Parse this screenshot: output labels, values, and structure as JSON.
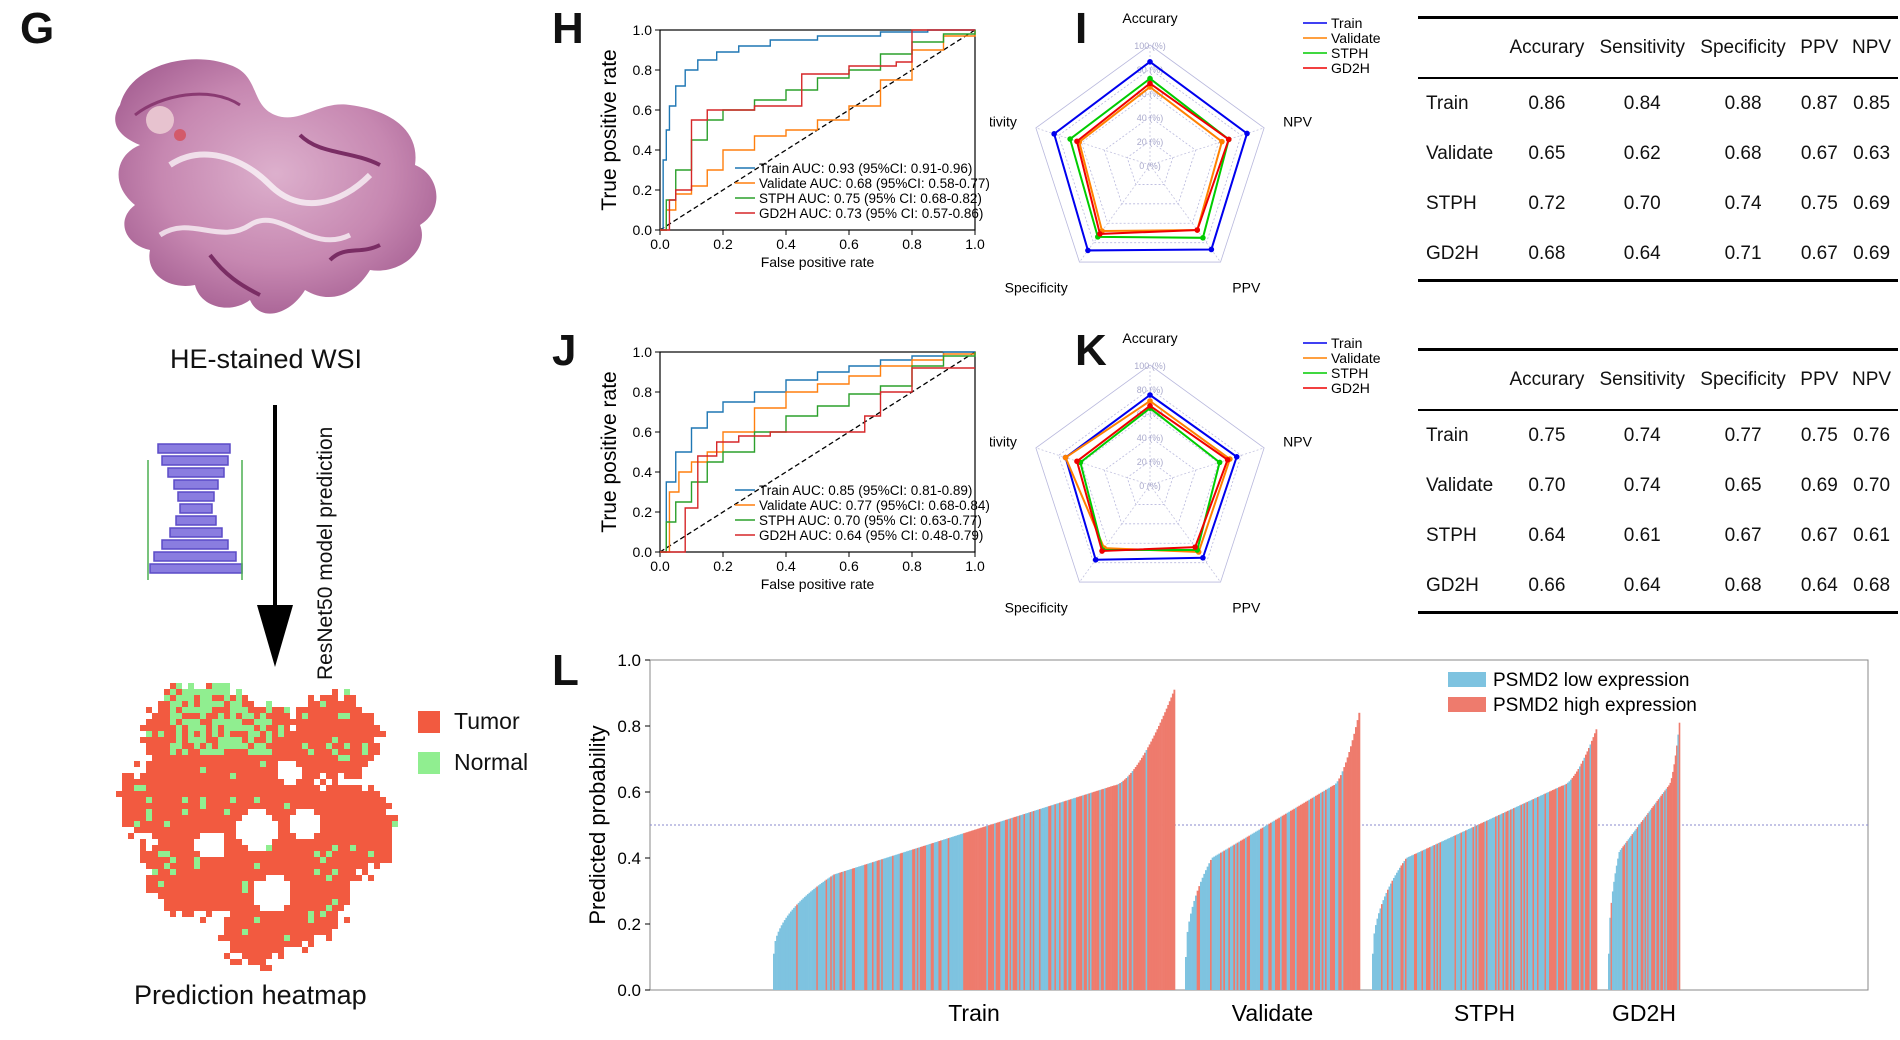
{
  "panels": {
    "G": "G",
    "H": "H",
    "I": "I",
    "J": "J",
    "K": "K",
    "L": "L"
  },
  "workflow": {
    "wsi_caption": "HE-stained WSI",
    "arrow_label": "ResNet50 model prediction",
    "heatmap_caption": "Prediction heatmap",
    "legend": [
      {
        "label": "Tumor",
        "color": "#f25a40"
      },
      {
        "label": "Normal",
        "color": "#90ee90"
      }
    ]
  },
  "chart_data": [
    {
      "id": "H",
      "type": "line",
      "xlabel": "False positive rate",
      "ylabel": "True positive rate",
      "xlim": [
        0,
        1
      ],
      "ylim": [
        0,
        1
      ],
      "xticks": [
        "0.0",
        "0.2",
        "0.4",
        "0.6",
        "0.8",
        "1.0"
      ],
      "yticks": [
        "0.0",
        "0.2",
        "0.4",
        "0.6",
        "0.8",
        "1.0"
      ],
      "series": [
        {
          "name": "Train AUC: 0.93 (95%CI: 0.91-0.96)",
          "color": "#1f77b4",
          "x": [
            0,
            0.01,
            0.02,
            0.03,
            0.05,
            0.08,
            0.12,
            0.18,
            0.25,
            0.35,
            0.5,
            0.7,
            0.85,
            1
          ],
          "y": [
            0,
            0.35,
            0.5,
            0.62,
            0.72,
            0.8,
            0.85,
            0.89,
            0.92,
            0.95,
            0.97,
            0.99,
            1,
            1
          ]
        },
        {
          "name": "Validate AUC: 0.68 (95%CI: 0.58-0.77)",
          "color": "#ff7f0e",
          "x": [
            0,
            0.02,
            0.05,
            0.1,
            0.15,
            0.2,
            0.3,
            0.4,
            0.5,
            0.6,
            0.7,
            0.8,
            0.9,
            1
          ],
          "y": [
            0,
            0.1,
            0.18,
            0.22,
            0.3,
            0.4,
            0.47,
            0.5,
            0.55,
            0.62,
            0.75,
            0.9,
            0.97,
            1
          ]
        },
        {
          "name": "STPH AUC: 0.75 (95% CI: 0.68-0.82)",
          "color": "#2ca02c",
          "x": [
            0,
            0.02,
            0.05,
            0.1,
            0.15,
            0.2,
            0.3,
            0.4,
            0.5,
            0.6,
            0.7,
            0.8,
            0.9,
            1
          ],
          "y": [
            0,
            0.15,
            0.3,
            0.45,
            0.55,
            0.6,
            0.65,
            0.7,
            0.76,
            0.8,
            0.88,
            0.94,
            0.98,
            1
          ]
        },
        {
          "name": "GD2H AUC: 0.73 (95% CI: 0.57-0.86)",
          "color": "#d62728",
          "x": [
            0,
            0.03,
            0.05,
            0.1,
            0.15,
            0.2,
            0.3,
            0.45,
            0.6,
            0.75,
            0.8,
            1
          ],
          "y": [
            0,
            0.15,
            0.2,
            0.55,
            0.6,
            0.6,
            0.62,
            0.78,
            0.82,
            0.84,
            1,
            1
          ]
        }
      ]
    },
    {
      "id": "J",
      "type": "line",
      "xlabel": "False positive rate",
      "ylabel": "True positive rate",
      "xlim": [
        0,
        1
      ],
      "ylim": [
        0,
        1
      ],
      "xticks": [
        "0.0",
        "0.2",
        "0.4",
        "0.6",
        "0.8",
        "1.0"
      ],
      "yticks": [
        "0.0",
        "0.2",
        "0.4",
        "0.6",
        "0.8",
        "1.0"
      ],
      "series": [
        {
          "name": "Train AUC: 0.85 (95%CI: 0.81-0.89)",
          "color": "#1f77b4",
          "x": [
            0,
            0.02,
            0.05,
            0.1,
            0.15,
            0.2,
            0.3,
            0.4,
            0.5,
            0.6,
            0.7,
            0.8,
            0.9,
            1
          ],
          "y": [
            0,
            0.35,
            0.5,
            0.62,
            0.7,
            0.75,
            0.8,
            0.86,
            0.9,
            0.93,
            0.96,
            0.98,
            1,
            1
          ]
        },
        {
          "name": "Validate AUC: 0.77 (95%CI: 0.68-0.84)",
          "color": "#ff7f0e",
          "x": [
            0,
            0.03,
            0.06,
            0.1,
            0.15,
            0.2,
            0.3,
            0.4,
            0.5,
            0.6,
            0.7,
            0.8,
            0.9,
            1
          ],
          "y": [
            0,
            0.3,
            0.4,
            0.45,
            0.5,
            0.6,
            0.72,
            0.8,
            0.84,
            0.88,
            0.93,
            0.96,
            0.99,
            1
          ]
        },
        {
          "name": "STPH AUC: 0.70 (95% CI: 0.63-0.77)",
          "color": "#2ca02c",
          "x": [
            0,
            0.02,
            0.05,
            0.1,
            0.15,
            0.2,
            0.3,
            0.4,
            0.5,
            0.6,
            0.7,
            0.8,
            0.9,
            1
          ],
          "y": [
            0,
            0.15,
            0.25,
            0.35,
            0.45,
            0.5,
            0.6,
            0.68,
            0.73,
            0.79,
            0.83,
            0.93,
            0.98,
            1
          ]
        },
        {
          "name": "GD2H AUC: 0.64 (95% CI: 0.48-0.79)",
          "color": "#d62728",
          "x": [
            0,
            0.06,
            0.08,
            0.12,
            0.18,
            0.25,
            0.35,
            0.55,
            0.65,
            0.7,
            0.8,
            0.9,
            1
          ],
          "y": [
            0,
            0,
            0.22,
            0.48,
            0.55,
            0.58,
            0.6,
            0.6,
            0.68,
            0.8,
            0.92,
            0.92,
            0.92
          ]
        }
      ]
    },
    {
      "id": "I",
      "type": "radar",
      "axes": [
        "Accurary",
        "NPV",
        "PPV",
        "Specificity",
        "Sensitivity"
      ],
      "rticks": [
        "0 (%)",
        "20 (%)",
        "40 (%)",
        "60 (%)",
        "80 (%)",
        "100 (%)"
      ],
      "series": [
        {
          "name": "Train",
          "color": "#0000ee",
          "values": [
            0.86,
            0.85,
            0.87,
            0.88,
            0.84
          ]
        },
        {
          "name": "Validate",
          "color": "#ff8000",
          "values": [
            0.65,
            0.63,
            0.67,
            0.68,
            0.62
          ]
        },
        {
          "name": "STPH",
          "color": "#00cc00",
          "values": [
            0.72,
            0.69,
            0.75,
            0.74,
            0.7
          ]
        },
        {
          "name": "GD2H",
          "color": "#ee0000",
          "values": [
            0.68,
            0.69,
            0.67,
            0.71,
            0.64
          ]
        }
      ]
    },
    {
      "id": "K",
      "type": "radar",
      "axes": [
        "Accurary",
        "NPV",
        "PPV",
        "Specificity",
        "Sensitivity"
      ],
      "rticks": [
        "0 (%)",
        "20 (%)",
        "40 (%)",
        "60 (%)",
        "80 (%)",
        "100 (%)"
      ],
      "series": [
        {
          "name": "Train",
          "color": "#0000ee",
          "values": [
            0.75,
            0.76,
            0.75,
            0.77,
            0.74
          ]
        },
        {
          "name": "Validate",
          "color": "#ff8000",
          "values": [
            0.7,
            0.7,
            0.69,
            0.65,
            0.74
          ]
        },
        {
          "name": "STPH",
          "color": "#00cc00",
          "values": [
            0.64,
            0.61,
            0.67,
            0.67,
            0.61
          ]
        },
        {
          "name": "GD2H",
          "color": "#ee0000",
          "values": [
            0.66,
            0.68,
            0.64,
            0.68,
            0.64
          ]
        }
      ]
    },
    {
      "id": "I-table",
      "type": "table",
      "columns": [
        "",
        "Accurary",
        "Sensitivity",
        "Specificity",
        "PPV",
        "NPV"
      ],
      "rows": [
        [
          "Train",
          "0.86",
          "0.84",
          "0.88",
          "0.87",
          "0.85"
        ],
        [
          "Validate",
          "0.65",
          "0.62",
          "0.68",
          "0.67",
          "0.63"
        ],
        [
          "STPH",
          "0.72",
          "0.70",
          "0.74",
          "0.75",
          "0.69"
        ],
        [
          "GD2H",
          "0.68",
          "0.64",
          "0.71",
          "0.67",
          "0.69"
        ]
      ]
    },
    {
      "id": "K-table",
      "type": "table",
      "columns": [
        "",
        "Accurary",
        "Sensitivity",
        "Specificity",
        "PPV",
        "NPV"
      ],
      "rows": [
        [
          "Train",
          "0.75",
          "0.74",
          "0.77",
          "0.75",
          "0.76"
        ],
        [
          "Validate",
          "0.70",
          "0.74",
          "0.65",
          "0.69",
          "0.70"
        ],
        [
          "STPH",
          "0.64",
          "0.61",
          "0.67",
          "0.67",
          "0.61"
        ],
        [
          "GD2H",
          "0.66",
          "0.64",
          "0.68",
          "0.64",
          "0.68"
        ]
      ]
    },
    {
      "id": "L",
      "type": "bar",
      "ylabel": "Predicted probability",
      "ylim": [
        0,
        1
      ],
      "yticks": [
        "0.0",
        "0.2",
        "0.4",
        "0.6",
        "0.8",
        "1.0"
      ],
      "threshold": 0.5,
      "legend": [
        {
          "label": "PSMD2 low expression",
          "color": "#7ec3e0"
        },
        {
          "label": "PSMD2 high expression",
          "color": "#ee7b6d"
        }
      ],
      "groups": [
        {
          "name": "Train",
          "n": 260,
          "min": 0.11,
          "max": 0.91,
          "knee": 0.35
        },
        {
          "name": "Validate",
          "n": 105,
          "min": 0.1,
          "max": 0.84,
          "knee": 0.4
        },
        {
          "name": "STPH",
          "n": 150,
          "min": 0.11,
          "max": 0.79,
          "knee": 0.4
        },
        {
          "name": "GD2H",
          "n": 55,
          "min": 0.11,
          "max": 0.81,
          "knee": 0.42
        }
      ]
    }
  ]
}
